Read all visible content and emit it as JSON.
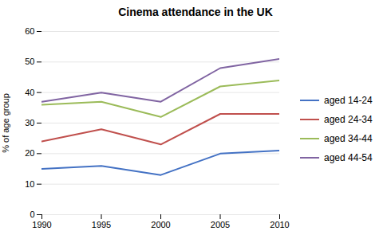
{
  "chart_data": {
    "type": "line",
    "title": "Cinema attendance in the UK",
    "ylabel": "% of age group",
    "x": [
      1990,
      1995,
      2000,
      2005,
      2010
    ],
    "series": [
      {
        "name": "aged 14-24",
        "color": "#4472C4",
        "values": [
          15,
          16,
          13,
          20,
          21
        ]
      },
      {
        "name": "aged 24-34",
        "color": "#C0504D",
        "values": [
          24,
          28,
          23,
          33,
          33
        ]
      },
      {
        "name": "aged 34-44",
        "color": "#9BBB59",
        "values": [
          36,
          37,
          32,
          42,
          44
        ]
      },
      {
        "name": "aged 44-54",
        "color": "#8064A2",
        "values": [
          37,
          40,
          37,
          48,
          51
        ]
      }
    ],
    "xlim": [
      1990,
      2010
    ],
    "xticks": [
      1990,
      1995,
      2000,
      2005,
      2010
    ],
    "ylim": [
      0,
      60
    ],
    "yticks": [
      0,
      10,
      20,
      30,
      40,
      50,
      60
    ],
    "grid": true,
    "legend": "right"
  }
}
